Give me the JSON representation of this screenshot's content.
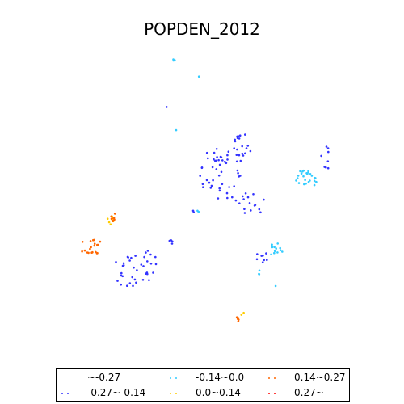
{
  "title": "POPDEN_2012",
  "legend": {
    "items": [
      {
        "label": "~-0.27",
        "color": "#ffffff"
      },
      {
        "label": "-0.27~-0.14",
        "color": "#3333ff"
      },
      {
        "label": "-0.14~0.0",
        "color": "#33ccff"
      },
      {
        "label": "0.0~0.14",
        "color": "#ffcc00"
      },
      {
        "label": "0.14~0.27",
        "color": "#ff6600"
      },
      {
        "label": "0.27~",
        "color": "#ff0000"
      }
    ]
  },
  "chart_data": {
    "type": "scatter",
    "title": "POPDEN_2012",
    "grid": false,
    "legend_placement": "bottom",
    "series": [
      {
        "name": "-0.27~-0.14",
        "color": "#3333ff",
        "clusters": [
          {
            "cx": 275,
            "cy": 215,
            "rx": 28,
            "ry": 35,
            "n": 48
          },
          {
            "cx": 300,
            "cy": 180,
            "rx": 12,
            "ry": 14,
            "n": 18
          },
          {
            "cx": 310,
            "cy": 250,
            "rx": 20,
            "ry": 18,
            "n": 16
          },
          {
            "cx": 165,
            "cy": 335,
            "rx": 25,
            "ry": 22,
            "n": 28
          },
          {
            "cx": 185,
            "cy": 325,
            "rx": 10,
            "ry": 15,
            "n": 10
          },
          {
            "cx": 405,
            "cy": 195,
            "rx": 8,
            "ry": 14,
            "n": 8
          },
          {
            "cx": 325,
            "cy": 320,
            "rx": 10,
            "ry": 8,
            "n": 8
          },
          {
            "cx": 213,
            "cy": 298,
            "rx": 4,
            "ry": 4,
            "n": 4
          },
          {
            "cx": 206,
            "cy": 133,
            "rx": 1,
            "ry": 1,
            "n": 1
          },
          {
            "cx": 240,
            "cy": 262,
            "rx": 2,
            "ry": 2,
            "n": 2
          }
        ]
      },
      {
        "name": "-0.14~0.0",
        "color": "#33ccff",
        "clusters": [
          {
            "cx": 378,
            "cy": 222,
            "rx": 14,
            "ry": 12,
            "n": 26
          },
          {
            "cx": 342,
            "cy": 310,
            "rx": 8,
            "ry": 10,
            "n": 12
          },
          {
            "cx": 215,
            "cy": 74,
            "rx": 3,
            "ry": 2,
            "n": 4
          },
          {
            "cx": 246,
            "cy": 95,
            "rx": 1,
            "ry": 1,
            "n": 1
          },
          {
            "cx": 219,
            "cy": 161,
            "rx": 1,
            "ry": 1,
            "n": 1
          },
          {
            "cx": 245,
            "cy": 262,
            "rx": 2,
            "ry": 2,
            "n": 3
          },
          {
            "cx": 320,
            "cy": 337,
            "rx": 3,
            "ry": 3,
            "n": 3
          },
          {
            "cx": 341,
            "cy": 353,
            "rx": 1,
            "ry": 1,
            "n": 1
          }
        ]
      },
      {
        "name": "0.0~0.14",
        "color": "#ffcc00",
        "clusters": [
          {
            "cx": 138,
            "cy": 272,
            "rx": 5,
            "ry": 10,
            "n": 8
          },
          {
            "cx": 300,
            "cy": 388,
            "rx": 2,
            "ry": 2,
            "n": 2
          }
        ]
      },
      {
        "name": "0.14~0.27",
        "color": "#ff6600",
        "clusters": [
          {
            "cx": 142,
            "cy": 270,
            "rx": 5,
            "ry": 6,
            "n": 8
          },
          {
            "cx": 112,
            "cy": 305,
            "rx": 14,
            "ry": 12,
            "n": 20
          },
          {
            "cx": 295,
            "cy": 400,
            "rx": 6,
            "ry": 8,
            "n": 5
          }
        ]
      },
      {
        "name": "0.27~",
        "color": "#ff0000",
        "clusters": []
      }
    ]
  }
}
